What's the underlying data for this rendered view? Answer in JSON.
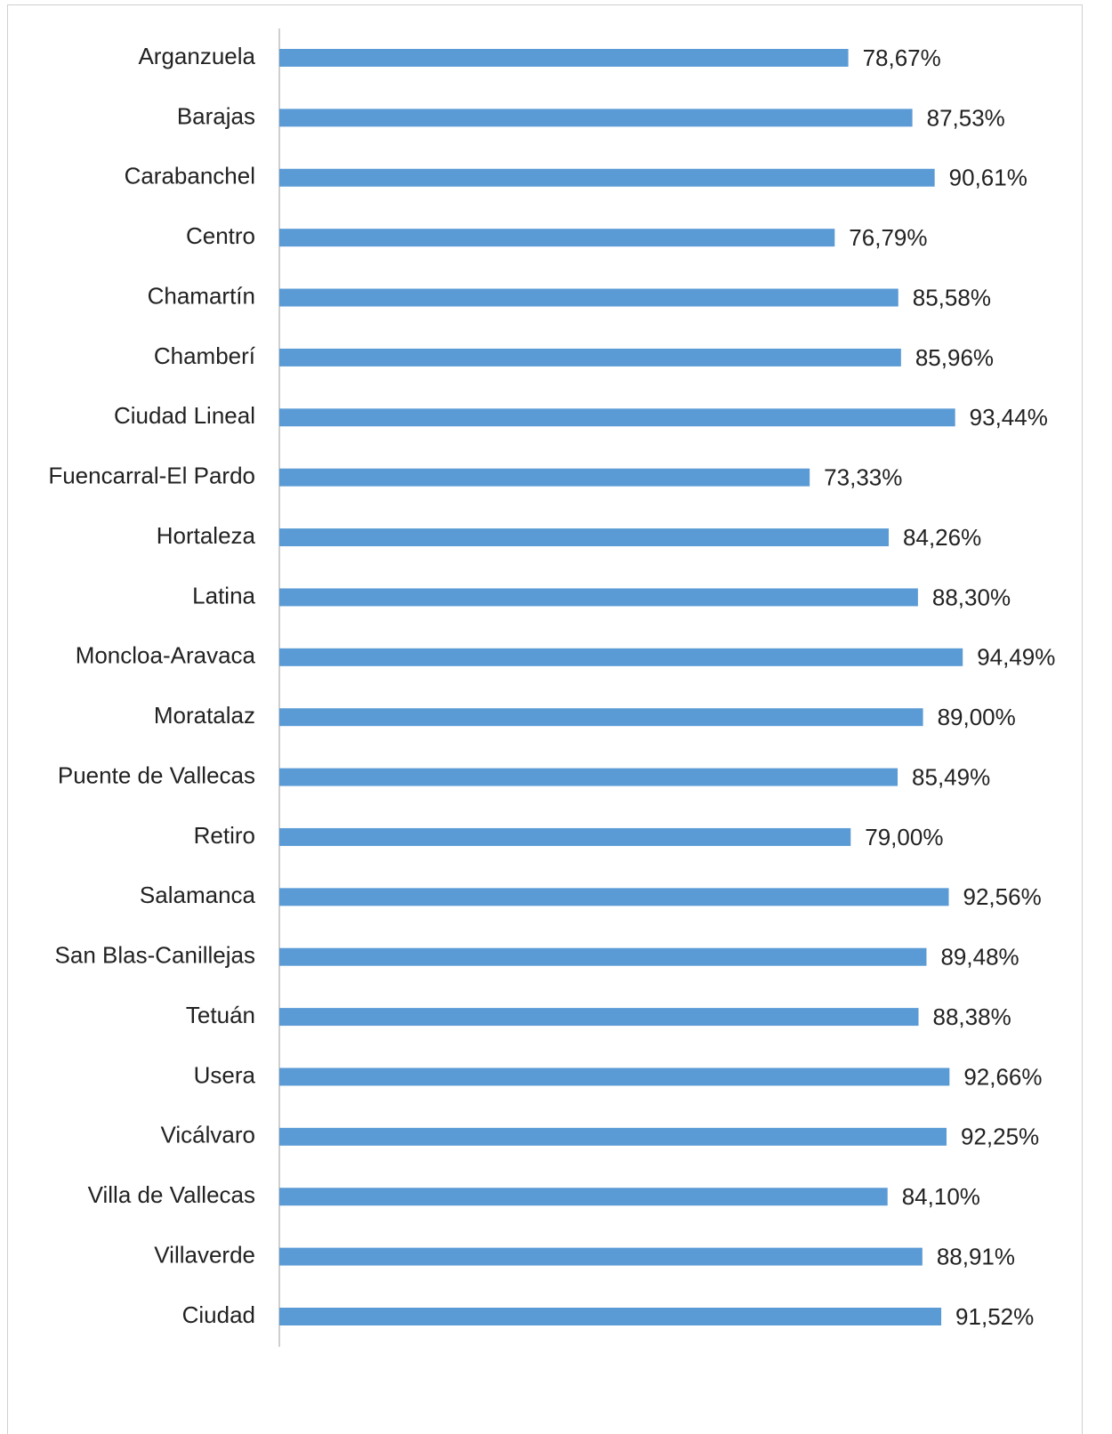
{
  "chart_data": {
    "type": "bar",
    "orientation": "horizontal",
    "categories": [
      "Arganzuela",
      "Barajas",
      "Carabanchel",
      "Centro",
      "Chamartín",
      "Chamberí",
      "Ciudad Lineal",
      "Fuencarral-El Pardo",
      "Hortaleza",
      "Latina",
      "Moncloa-Aravaca",
      "Moratalaz",
      "Puente de Vallecas",
      "Retiro",
      "Salamanca",
      "San Blas-Canillejas",
      "Tetuán",
      "Usera",
      "Vicálvaro",
      "Villa de Vallecas",
      "Villaverde",
      "Ciudad"
    ],
    "values": [
      78.67,
      87.53,
      90.61,
      76.79,
      85.58,
      85.96,
      93.44,
      73.33,
      84.26,
      88.3,
      94.49,
      89.0,
      85.49,
      79.0,
      92.56,
      89.48,
      88.38,
      92.66,
      92.25,
      84.1,
      88.91,
      91.52
    ],
    "value_labels": [
      "78,67%",
      "87,53%",
      "90,61%",
      "76,79%",
      "85,58%",
      "85,96%",
      "93,44%",
      "73,33%",
      "84,26%",
      "88,30%",
      "94,49%",
      "89,00%",
      "85,49%",
      "79,00%",
      "92,56%",
      "89,48%",
      "88,38%",
      "92,66%",
      "92,25%",
      "84,10%",
      "88,91%",
      "91,52%"
    ],
    "color": "#5b9bd5",
    "xlim": [
      0,
      100
    ]
  }
}
